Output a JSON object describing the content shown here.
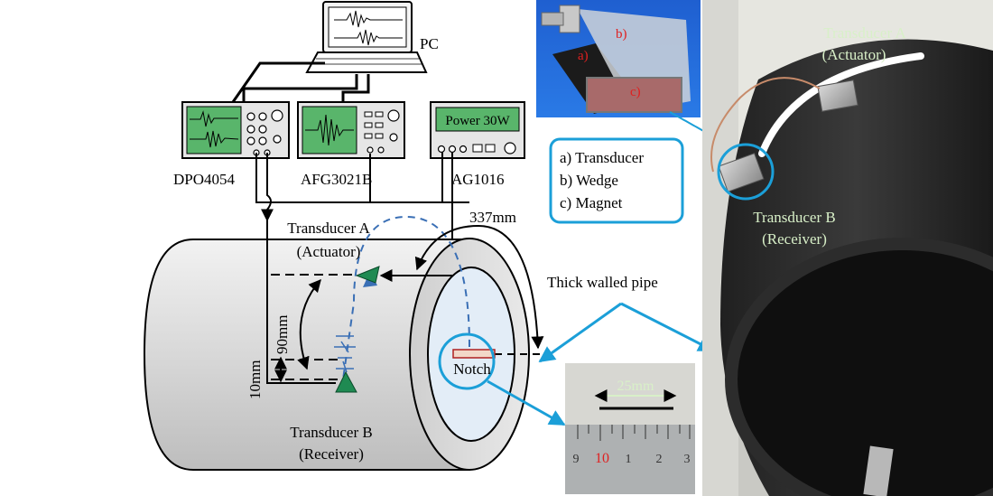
{
  "labels": {
    "pc": "PC",
    "dpo": "DPO4054",
    "afg": "AFG3021B",
    "ag": "AG1016",
    "power": "Power 30W",
    "dist_337": "337mm",
    "dist_90": "90mm",
    "dist_10": "10mm",
    "tx_a_line1": "Transducer A",
    "tx_a_line2": "(Actuator)",
    "tx_b_line1": "Transducer B",
    "tx_b_line2": "(Receiver)",
    "notch": "Notch",
    "thick_pipe": "Thick walled pipe",
    "scale_25": "25mm"
  },
  "legend": {
    "a": "a) Transducer",
    "b": "b) Wedge",
    "c": "c) Magnet"
  },
  "photo_labels": {
    "a": "a)",
    "b": "b)",
    "c": "c)"
  },
  "ruler": {
    "ticks": [
      "9",
      "10",
      "1",
      "2",
      "3"
    ]
  },
  "colors": {
    "callout": "#1b9fd8",
    "wave_dash": "#3a6fb5",
    "transducer_green": "#1f8a52",
    "notch_fill": "#f2d7c8",
    "notch_stroke": "#b02020",
    "pipe_gray": "#dcdcdc",
    "pipe_inner": "#e3edf7",
    "photo_caption": "#d8f0c8",
    "ruler_red": "#e02020"
  }
}
